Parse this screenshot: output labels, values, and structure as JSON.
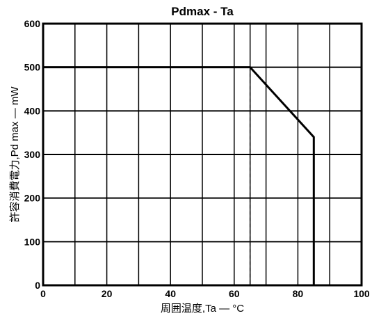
{
  "chart_data": {
    "type": "line",
    "title": "Pdmax - Ta",
    "xlabel": "周囲温度,Ta — °C",
    "ylabel": "許容消費電力,Pd max — mW",
    "xlim": [
      0,
      100
    ],
    "ylim": [
      0,
      600
    ],
    "x_ticks": [
      0,
      20,
      40,
      60,
      80,
      100
    ],
    "y_ticks": [
      0,
      100,
      200,
      300,
      400,
      500,
      600
    ],
    "x_grid": [
      0,
      10,
      20,
      30,
      40,
      50,
      60,
      65,
      70,
      80,
      90,
      100
    ],
    "y_grid": [
      0,
      100,
      200,
      300,
      400,
      500,
      600
    ],
    "grid": true,
    "series": [
      {
        "x": [
          0,
          65,
          85,
          85
        ],
        "y": [
          500,
          500,
          340,
          0
        ]
      }
    ],
    "reference_lines": [
      {
        "style": "dashed",
        "x": [
          65,
          65
        ],
        "y": [
          500,
          0
        ]
      }
    ]
  }
}
